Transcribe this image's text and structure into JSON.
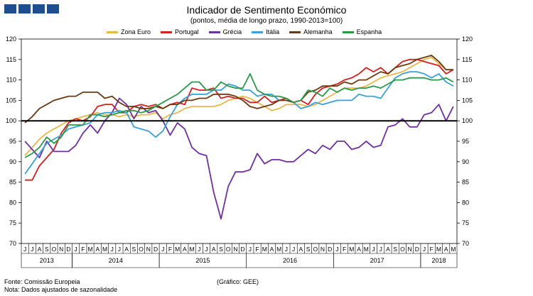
{
  "header": {
    "title": "Indicador de Sentimento Económico",
    "subtitle": "(pontos, média de longo prazo, 1990-2013=100)"
  },
  "footer": {
    "source": "Fonte: Comissão Europeia",
    "note": "Nota: Dados ajustados de sazonalidade",
    "credit": "(Gráfico: GEE)"
  },
  "chart_data": {
    "type": "line",
    "title": "Indicador de Sentimento Económico",
    "subtitle": "(pontos, média de longo prazo, 1990-2013=100)",
    "ylim": [
      70,
      120
    ],
    "yticks": [
      70,
      75,
      80,
      85,
      90,
      95,
      100,
      105,
      110,
      115,
      120
    ],
    "reference_line": 100,
    "grid": false,
    "legend_position": "top",
    "month_labels": [
      "J",
      "J",
      "A",
      "S",
      "O",
      "N",
      "D",
      "J",
      "F",
      "M",
      "A",
      "M",
      "J",
      "J",
      "A",
      "S",
      "O",
      "N",
      "D",
      "J",
      "F",
      "M",
      "A",
      "M",
      "J",
      "J",
      "A",
      "S",
      "O",
      "N",
      "D",
      "J",
      "F",
      "M",
      "A",
      "M",
      "J",
      "J",
      "A",
      "S",
      "O",
      "N",
      "D",
      "J",
      "F",
      "M",
      "A",
      "M",
      "J",
      "J",
      "A",
      "S",
      "O",
      "N",
      "D",
      "J",
      "F",
      "M",
      "A",
      "M"
    ],
    "years": [
      {
        "label": "2013",
        "start": 0,
        "end": 6
      },
      {
        "label": "2014",
        "start": 7,
        "end": 18
      },
      {
        "label": "2015",
        "start": 19,
        "end": 30
      },
      {
        "label": "2016",
        "start": 31,
        "end": 42
      },
      {
        "label": "2017",
        "start": 43,
        "end": 54
      },
      {
        "label": "2018",
        "start": 55,
        "end": 59
      }
    ],
    "series": [
      {
        "name": "Zona Euro",
        "color": "#e8b84a",
        "values": [
          91.5,
          93.5,
          95.5,
          97,
          98,
          99,
          100,
          100.5,
          101,
          101.5,
          102,
          101.5,
          101.5,
          101,
          101.5,
          101,
          101.5,
          101.5,
          102,
          100.5,
          101.5,
          102,
          103,
          103.5,
          103.5,
          103.5,
          103.5,
          104,
          105,
          105.5,
          106,
          105.5,
          104.5,
          103.5,
          102.5,
          103,
          104,
          104,
          104,
          103.5,
          104,
          105,
          106,
          107,
          108,
          108,
          108,
          108.5,
          109.5,
          110.5,
          111,
          111.5,
          112,
          113,
          114,
          115,
          115.5,
          114,
          112.5,
          112.5
        ]
      },
      {
        "name": "Portugal",
        "color": "#d42020",
        "values": [
          85.5,
          85.5,
          89,
          91,
          93,
          97,
          99.5,
          100.5,
          100,
          101,
          103.5,
          104,
          104,
          102,
          102,
          103.5,
          104,
          103.5,
          104,
          103,
          104,
          104.5,
          104,
          108,
          107.5,
          107.5,
          108,
          105.5,
          106,
          105.5,
          105.5,
          104.5,
          104.5,
          106,
          104.5,
          105,
          105.5,
          104.5,
          105,
          104,
          106.5,
          108,
          108.5,
          109,
          110,
          110.5,
          111.5,
          113,
          112,
          113,
          111.5,
          113,
          114.5,
          115,
          115,
          114.5,
          114,
          113.5,
          111.5,
          112.5
        ]
      },
      {
        "name": "Grécia",
        "color": "#7030a0",
        "values": [
          95,
          93,
          91,
          95,
          92.5,
          92.5,
          92.5,
          94,
          97,
          99,
          97,
          100,
          102,
          105.5,
          104,
          100.5,
          103.5,
          102,
          102.5,
          100,
          96.5,
          99.5,
          98,
          93.5,
          92,
          91.5,
          82.5,
          76,
          84,
          87.5,
          87.5,
          88,
          92,
          89.5,
          90.5,
          90.5,
          90,
          90,
          91.5,
          93,
          92,
          94,
          93,
          95,
          95,
          93,
          93.5,
          95,
          93.5,
          94,
          98.5,
          99,
          100.5,
          98.5,
          98.5,
          101.5,
          102,
          104,
          100,
          103.5
        ]
      },
      {
        "name": "Itália",
        "color": "#3aa0d8",
        "values": [
          87,
          89.5,
          92,
          94.5,
          95.5,
          96.5,
          98,
          98.5,
          99,
          99.5,
          101.5,
          102,
          102,
          102.5,
          102,
          98.5,
          98,
          97.5,
          96,
          97.5,
          101,
          104,
          105.5,
          106.5,
          106.5,
          106.5,
          107.5,
          107.5,
          109,
          108.5,
          107.5,
          107.5,
          106,
          106.5,
          106.5,
          105,
          105,
          104.5,
          103,
          103.5,
          104.5,
          104,
          104.5,
          105,
          105,
          105,
          106.5,
          106,
          106,
          105.5,
          108,
          110.5,
          111.5,
          112,
          112,
          111.5,
          110.5,
          111.5,
          109.5,
          108.5
        ]
      },
      {
        "name": "Alemanha",
        "color": "#6b3a12",
        "values": [
          99.5,
          101,
          103,
          104,
          105,
          105.5,
          106,
          106,
          107,
          107,
          107,
          105.5,
          106,
          104.5,
          103.5,
          103.5,
          103,
          103,
          103.5,
          103,
          104,
          104,
          105,
          105,
          105.5,
          105.5,
          106.5,
          106.5,
          106.5,
          106,
          105,
          103.5,
          103,
          103.5,
          104,
          105,
          105,
          104.5,
          105,
          107,
          107.5,
          108.5,
          108.5,
          108.5,
          109.5,
          109,
          110,
          110,
          111,
          112,
          111.5,
          113,
          113.5,
          114,
          115,
          115.5,
          116,
          114.5,
          112.5,
          112.5
        ]
      },
      {
        "name": "Espanha",
        "color": "#2a9a4a",
        "values": [
          91,
          92,
          93.5,
          96,
          94.5,
          96,
          99,
          99,
          99,
          101.5,
          101.5,
          101,
          101.5,
          102,
          102.5,
          102.5,
          102,
          102.5,
          103.5,
          104.5,
          105.5,
          106.5,
          108,
          109.5,
          109.5,
          107.5,
          107.5,
          109.5,
          108.5,
          108,
          108,
          111.5,
          107.5,
          106.5,
          106,
          106,
          105.5,
          104.5,
          105,
          107.5,
          107,
          106,
          108,
          107,
          108,
          107.5,
          108,
          108,
          108.5,
          108,
          109,
          110,
          110,
          110.5,
          110.5,
          110.5,
          110,
          110,
          110.5,
          109.5
        ]
      }
    ]
  }
}
